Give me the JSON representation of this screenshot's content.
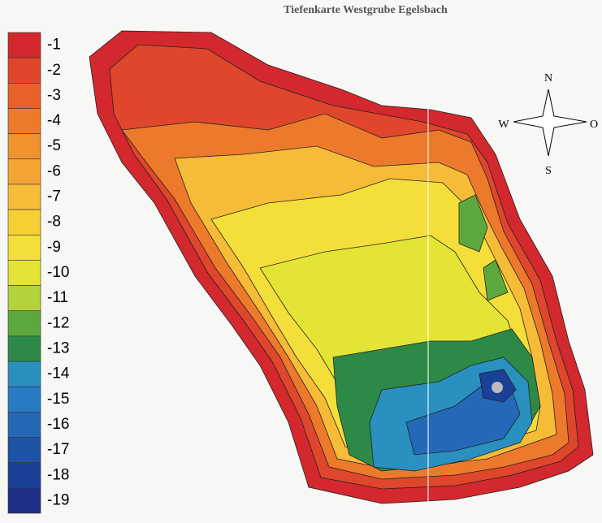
{
  "header": {
    "title": "Tiefenkarte Westgrube Egelsbach"
  },
  "legend": {
    "entries": [
      {
        "label": "-1",
        "color": "#d3282d"
      },
      {
        "label": "-2",
        "color": "#df462b"
      },
      {
        "label": "-3",
        "color": "#e8602a"
      },
      {
        "label": "-4",
        "color": "#ed7a2b"
      },
      {
        "label": "-5",
        "color": "#f0922f"
      },
      {
        "label": "-6",
        "color": "#f3a634"
      },
      {
        "label": "-7",
        "color": "#f6bb37"
      },
      {
        "label": "-8",
        "color": "#f5cf33"
      },
      {
        "label": "-9",
        "color": "#f4df3a"
      },
      {
        "label": "-10",
        "color": "#e3e436"
      },
      {
        "label": "-11",
        "color": "#b3d23c"
      },
      {
        "label": "-12",
        "color": "#5ca83e"
      },
      {
        "label": "-13",
        "color": "#2d8a46"
      },
      {
        "label": "-14",
        "color": "#2a90bf"
      },
      {
        "label": "-15",
        "color": "#297cc4"
      },
      {
        "label": "-16",
        "color": "#2468b8"
      },
      {
        "label": "-17",
        "color": "#1f53a8"
      },
      {
        "label": "-18",
        "color": "#1b4098"
      },
      {
        "label": "-19",
        "color": "#1d2f86"
      }
    ]
  },
  "compass": {
    "north": "N",
    "east": "O",
    "south": "S",
    "west": "W"
  }
}
